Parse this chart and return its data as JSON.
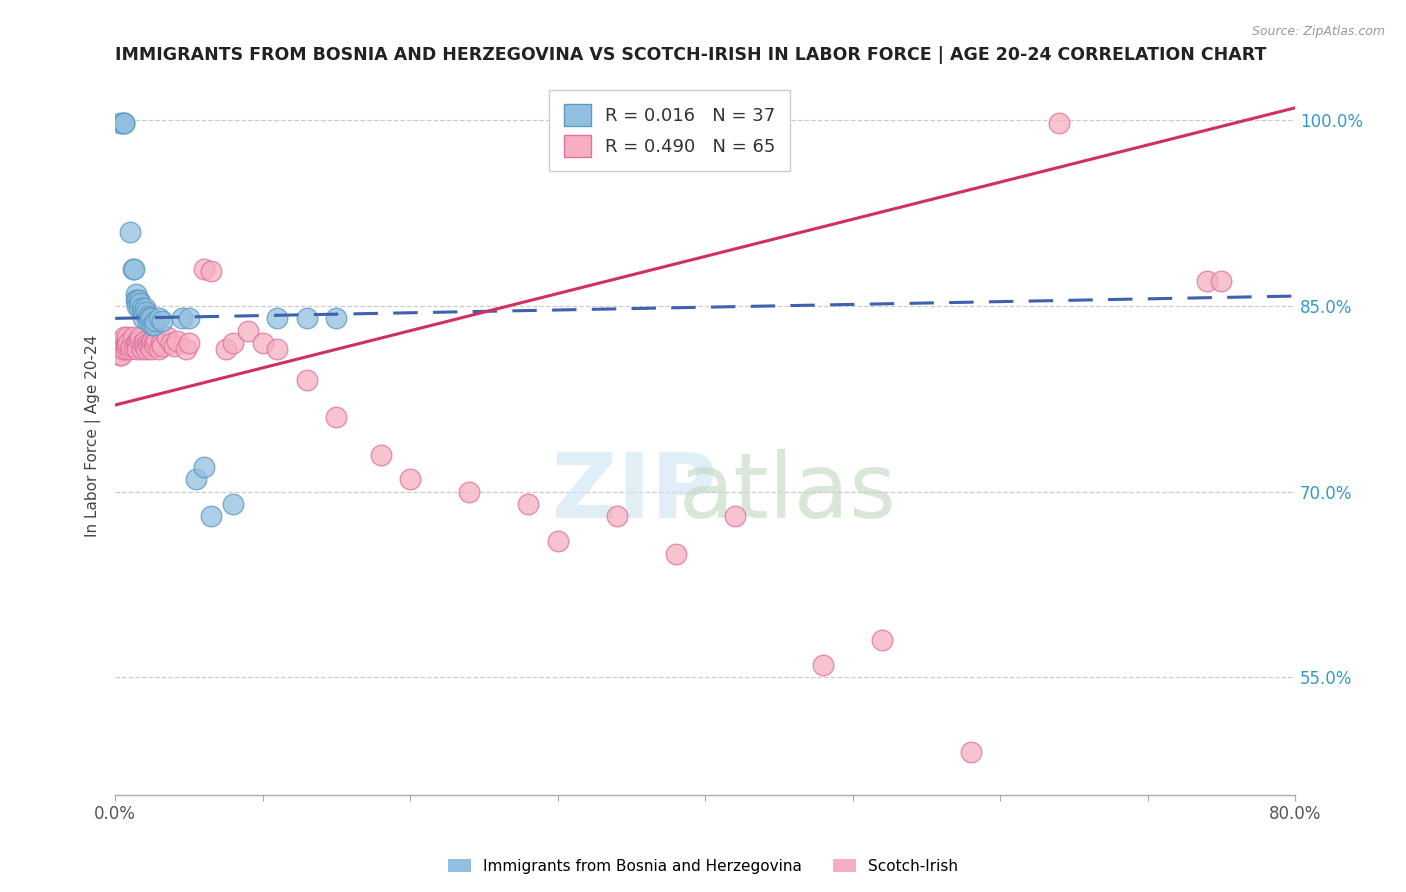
{
  "title": "IMMIGRANTS FROM BOSNIA AND HERZEGOVINA VS SCOTCH-IRISH IN LABOR FORCE | AGE 20-24 CORRELATION CHART",
  "source": "Source: ZipAtlas.com",
  "ylabel": "In Labor Force | Age 20-24",
  "xlim": [
    0.0,
    0.8
  ],
  "ylim": [
    0.455,
    1.035
  ],
  "ytick_positions": [
    0.55,
    0.7,
    0.85,
    1.0
  ],
  "ytick_labels": [
    "55.0%",
    "70.0%",
    "85.0%",
    "100.0%"
  ],
  "blue_R": 0.016,
  "blue_N": 37,
  "pink_R": 0.49,
  "pink_N": 65,
  "blue_color": "#92bfe0",
  "pink_color": "#f5afc0",
  "blue_edge_color": "#5a9abf",
  "pink_edge_color": "#e070a0",
  "blue_line_color": "#4060b0",
  "pink_line_color": "#d03060",
  "legend_label_blue": "Immigrants from Bosnia and Herzegovina",
  "legend_label_pink": "Scotch-Irish",
  "background_color": "#ffffff",
  "grid_color": "#cccccc",
  "blue_scatter_x": [
    0.003,
    0.005,
    0.006,
    0.006,
    0.01,
    0.012,
    0.013,
    0.014,
    0.014,
    0.015,
    0.015,
    0.016,
    0.016,
    0.017,
    0.018,
    0.019,
    0.019,
    0.02,
    0.021,
    0.022,
    0.022,
    0.023,
    0.024,
    0.025,
    0.026,
    0.027,
    0.03,
    0.032,
    0.045,
    0.05,
    0.055,
    0.06,
    0.065,
    0.08,
    0.11,
    0.13,
    0.15
  ],
  "blue_scatter_y": [
    0.998,
    0.998,
    0.998,
    0.998,
    0.91,
    0.88,
    0.88,
    0.86,
    0.855,
    0.855,
    0.85,
    0.855,
    0.848,
    0.852,
    0.848,
    0.845,
    0.84,
    0.848,
    0.845,
    0.842,
    0.838,
    0.84,
    0.84,
    0.835,
    0.835,
    0.838,
    0.84,
    0.838,
    0.84,
    0.84,
    0.71,
    0.72,
    0.68,
    0.69,
    0.84,
    0.84,
    0.84
  ],
  "pink_scatter_x": [
    0.002,
    0.003,
    0.004,
    0.005,
    0.005,
    0.006,
    0.007,
    0.007,
    0.008,
    0.008,
    0.009,
    0.01,
    0.011,
    0.012,
    0.013,
    0.014,
    0.015,
    0.015,
    0.016,
    0.017,
    0.018,
    0.019,
    0.02,
    0.02,
    0.021,
    0.022,
    0.023,
    0.024,
    0.024,
    0.025,
    0.026,
    0.027,
    0.028,
    0.03,
    0.031,
    0.032,
    0.035,
    0.038,
    0.04,
    0.042,
    0.048,
    0.05,
    0.06,
    0.065,
    0.075,
    0.08,
    0.09,
    0.1,
    0.11,
    0.13,
    0.15,
    0.18,
    0.2,
    0.24,
    0.28,
    0.3,
    0.34,
    0.38,
    0.42,
    0.48,
    0.52,
    0.58,
    0.64,
    0.74,
    0.75
  ],
  "pink_scatter_y": [
    0.82,
    0.81,
    0.81,
    0.82,
    0.815,
    0.825,
    0.82,
    0.815,
    0.825,
    0.818,
    0.82,
    0.815,
    0.818,
    0.825,
    0.818,
    0.82,
    0.82,
    0.815,
    0.822,
    0.825,
    0.815,
    0.82,
    0.822,
    0.818,
    0.815,
    0.82,
    0.818,
    0.82,
    0.815,
    0.822,
    0.82,
    0.818,
    0.822,
    0.815,
    0.82,
    0.818,
    0.825,
    0.82,
    0.818,
    0.822,
    0.815,
    0.82,
    0.88,
    0.878,
    0.815,
    0.82,
    0.83,
    0.82,
    0.815,
    0.79,
    0.76,
    0.73,
    0.71,
    0.7,
    0.69,
    0.66,
    0.68,
    0.65,
    0.68,
    0.56,
    0.58,
    0.49,
    0.998,
    0.87,
    0.87
  ],
  "blue_line_x": [
    0.0,
    0.8
  ],
  "blue_line_y": [
    0.84,
    0.858
  ],
  "pink_line_x": [
    0.0,
    0.8
  ],
  "pink_line_y": [
    0.77,
    1.01
  ]
}
